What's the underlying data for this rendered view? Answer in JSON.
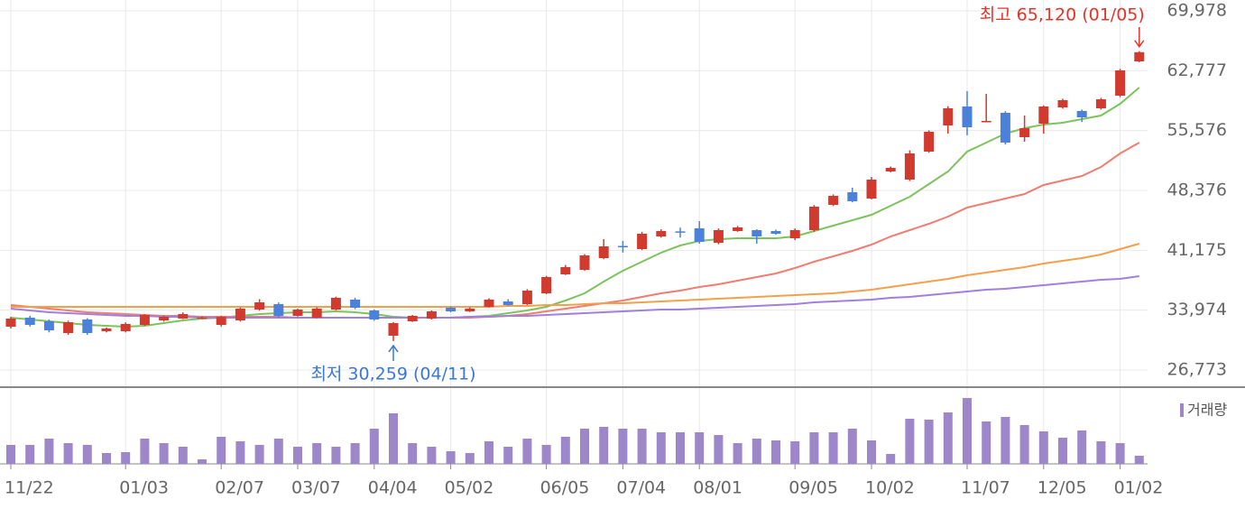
{
  "chart_data": {
    "type": "candlestick",
    "categories": [
      "11/22",
      null,
      null,
      null,
      null,
      null,
      "01/03",
      null,
      null,
      null,
      null,
      "02/07",
      null,
      null,
      null,
      "03/07",
      null,
      null,
      null,
      "04/04",
      null,
      null,
      null,
      "05/02",
      null,
      null,
      null,
      null,
      "06/05",
      null,
      null,
      null,
      "07/04",
      null,
      null,
      null,
      "08/01",
      null,
      null,
      null,
      null,
      "09/05",
      null,
      null,
      null,
      "10/02",
      null,
      null,
      null,
      null,
      "11/07",
      null,
      null,
      null,
      "12/05",
      null,
      null,
      null,
      "01/02",
      null
    ],
    "open": [
      31983,
      33069,
      32635,
      31224,
      32852,
      31441,
      31441,
      32201,
      32743,
      32960,
      33069,
      32201,
      32743,
      34046,
      34697,
      33286,
      33069,
      34046,
      35240,
      33937,
      30898,
      32635,
      32960,
      34263,
      33829,
      34372,
      35023,
      34697,
      36000,
      38279,
      38822,
      40233,
      41700,
      41319,
      42838,
      43450,
      43815,
      42079,
      43490,
      43598,
      43490,
      42621,
      43598,
      46638,
      48157,
      47398,
      50654,
      49677,
      53042,
      56190,
      58470,
      56600,
      57710,
      54779,
      56407,
      58361,
      57927,
      58253,
      59773,
      63897
    ],
    "high": [
      33177,
      33300,
      32850,
      32700,
      33000,
      31900,
      32500,
      33500,
      33300,
      33700,
      33200,
      33300,
      34300,
      35300,
      34900,
      34150,
      34300,
      35600,
      35450,
      34050,
      32550,
      33400,
      33950,
      34400,
      34300,
      35400,
      35300,
      36500,
      38100,
      39400,
      40700,
      42513,
      42300,
      43400,
      43700,
      43900,
      44684,
      43800,
      44100,
      43700,
      43650,
      43800,
      46600,
      47900,
      48700,
      50000,
      51250,
      53200,
      55600,
      58500,
      60315,
      59989,
      57900,
      57384,
      58600,
      59400,
      58100,
      59500,
      63000,
      65120
    ],
    "low": [
      31766,
      32000,
      31300,
      31000,
      31000,
      31300,
      31300,
      32100,
      32600,
      32900,
      32900,
      32000,
      32600,
      33900,
      33100,
      33200,
      33000,
      33950,
      34100,
      32700,
      30259,
      32550,
      32850,
      33700,
      33750,
      34300,
      34500,
      34600,
      35900,
      38200,
      38700,
      40100,
      40900,
      41200,
      42700,
      42700,
      41970,
      41900,
      43400,
      41970,
      43050,
      42400,
      43400,
      46500,
      46950,
      47300,
      50550,
      49500,
      52900,
      55200,
      54996,
      56600,
      53900,
      54236,
      55213,
      58200,
      56600,
      58100,
      59600,
      63800
    ],
    "close": [
      32960,
      32201,
      31549,
      32526,
      31224,
      31766,
      32309,
      33395,
      33177,
      33503,
      33100,
      33177,
      34154,
      34914,
      33286,
      34046,
      34154,
      35457,
      34263,
      32852,
      32418,
      33286,
      33829,
      33829,
      34154,
      35240,
      34589,
      36325,
      37954,
      39148,
      40559,
      41644,
      41600,
      43164,
      43490,
      43350,
      42187,
      43598,
      43924,
      42838,
      43164,
      43598,
      46421,
      47723,
      47072,
      49677,
      51088,
      52825,
      55430,
      58253,
      55973,
      56733,
      54128,
      55864,
      58470,
      59229,
      57167,
      59338,
      62812,
      65000
    ],
    "up_color": "#d13a2e",
    "down_color": "#4b80db",
    "lines": [
      {
        "color": "#7cc35e",
        "values": [
          33069,
          32852,
          32635,
          32418,
          32201,
          32092,
          31984,
          32092,
          32418,
          32744,
          32961,
          33069,
          33286,
          33504,
          33612,
          33721,
          33721,
          33829,
          33721,
          33504,
          33178,
          33069,
          33069,
          33069,
          33178,
          33286,
          33612,
          33938,
          34372,
          35132,
          36000,
          37411,
          38714,
          39799,
          40885,
          41753,
          42296,
          42513,
          42622,
          42622,
          42622,
          42839,
          43490,
          44141,
          44793,
          45444,
          46530,
          47615,
          49135,
          50654,
          53043,
          54128,
          55214,
          55865,
          56299,
          56516,
          56950,
          57385,
          58796,
          60750
        ]
      },
      {
        "color": "#ee7d72",
        "values": [
          34589,
          34372,
          34155,
          33938,
          33721,
          33612,
          33504,
          33395,
          33286,
          33286,
          33178,
          33178,
          33178,
          33178,
          33178,
          33069,
          33069,
          33069,
          33069,
          33069,
          33069,
          33069,
          33069,
          33069,
          33069,
          33178,
          33286,
          33504,
          33829,
          34155,
          34481,
          34806,
          35132,
          35566,
          36000,
          36326,
          36760,
          37086,
          37520,
          37954,
          38388,
          39040,
          39799,
          40451,
          41102,
          41862,
          42839,
          43599,
          44359,
          45227,
          46312,
          46855,
          47398,
          47941,
          49026,
          49569,
          50112,
          51197,
          52825,
          54128
        ]
      },
      {
        "color": "#f3a04c",
        "values": [
          34372,
          34372,
          34372,
          34372,
          34372,
          34372,
          34372,
          34372,
          34372,
          34372,
          34372,
          34372,
          34372,
          34372,
          34372,
          34372,
          34372,
          34372,
          34372,
          34372,
          34372,
          34372,
          34372,
          34372,
          34372,
          34372,
          34481,
          34481,
          34589,
          34589,
          34698,
          34806,
          34806,
          34915,
          35023,
          35132,
          35240,
          35349,
          35457,
          35566,
          35675,
          35783,
          35892,
          36000,
          36217,
          36434,
          36760,
          37086,
          37411,
          37737,
          38171,
          38497,
          38823,
          39148,
          39582,
          39908,
          40234,
          40668,
          41319,
          41970
        ]
      },
      {
        "color": "#a27fdf",
        "values": [
          34155,
          33938,
          33721,
          33612,
          33504,
          33395,
          33286,
          33286,
          33178,
          33178,
          33069,
          33069,
          33069,
          33069,
          33069,
          33069,
          33069,
          33069,
          33069,
          33069,
          33069,
          33069,
          33069,
          33069,
          33178,
          33178,
          33286,
          33286,
          33395,
          33504,
          33612,
          33721,
          33829,
          33938,
          34046,
          34046,
          34155,
          34263,
          34372,
          34481,
          34589,
          34698,
          34915,
          35023,
          35132,
          35240,
          35457,
          35566,
          35783,
          36000,
          36217,
          36434,
          36543,
          36760,
          36977,
          37194,
          37411,
          37628,
          37737,
          38063
        ]
      }
    ],
    "volume": {
      "name": "거래량",
      "color": "#9d86c9",
      "ylim": [
        0,
        84
      ],
      "values": [
        21,
        21,
        28,
        23,
        21,
        12,
        13,
        28,
        23,
        19,
        5,
        30,
        25,
        21,
        28,
        19,
        23,
        19,
        23,
        39,
        56,
        23,
        19,
        14,
        12,
        25,
        19,
        28,
        21,
        30,
        39,
        41,
        39,
        39,
        35,
        35,
        35,
        32,
        23,
        28,
        26,
        25,
        35,
        35,
        39,
        26,
        11,
        50,
        49,
        57,
        73,
        47,
        52,
        43,
        36,
        29,
        37,
        25,
        23,
        9
      ]
    },
    "ylim": [
      26773,
      69978
    ],
    "yticks": [
      {
        "value": 26773,
        "label": "26,773"
      },
      {
        "value": 33974,
        "label": "33,974"
      },
      {
        "value": 41175,
        "label": "41,175"
      },
      {
        "value": 48376,
        "label": "48,376"
      },
      {
        "value": 55576,
        "label": "55,576"
      },
      {
        "value": 62777,
        "label": "62,777"
      },
      {
        "value": 69978,
        "label": "69,978"
      }
    ],
    "grid": true,
    "annotations": {
      "high": "최고 65,120 (01/05)",
      "low": "최저 30,259 (04/11)",
      "high_color": "#e3342c",
      "low_color": "#3a78d8"
    }
  }
}
